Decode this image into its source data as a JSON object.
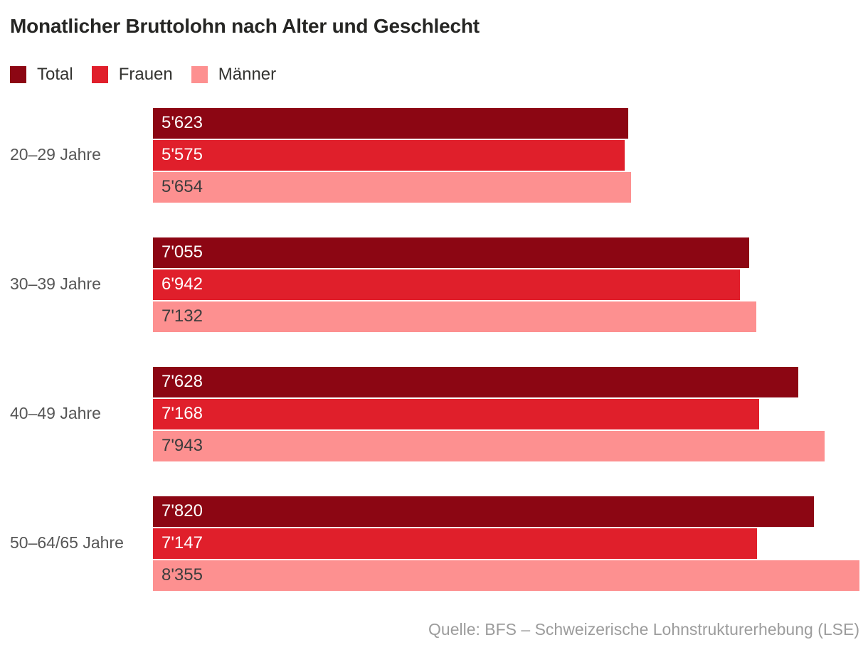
{
  "chart_data": {
    "type": "bar",
    "orientation": "horizontal",
    "title": "Monatlicher Bruttolohn nach Alter und Geschlecht",
    "source_note": "Quelle: BFS – Schweizerische Lohnstrukturerhebung (LSE)",
    "categories": [
      "20–29 Jahre",
      "30–39 Jahre",
      "40–49 Jahre",
      "50–64/65 Jahre"
    ],
    "series": [
      {
        "name": "Total",
        "color": "#8C0613",
        "label_color": "#FFFFFF",
        "values": [
          5623,
          7055,
          7628,
          7820
        ],
        "value_labels": [
          "5'623",
          "7'055",
          "7'628",
          "7'820"
        ]
      },
      {
        "name": "Frauen",
        "color": "#E01F2B",
        "label_color": "#FFFFFF",
        "values": [
          5575,
          6942,
          7168,
          7147
        ],
        "value_labels": [
          "5'575",
          "6'942",
          "7'168",
          "7'147"
        ]
      },
      {
        "name": "Männer",
        "color": "#FD9090",
        "label_color": "#3C3C3C",
        "values": [
          5654,
          7132,
          7943,
          8355
        ],
        "value_labels": [
          "5'654",
          "7'132",
          "7'943",
          "8'355"
        ]
      }
    ],
    "xlim": [
      0,
      8355
    ],
    "grid": false,
    "legend_position": "top",
    "axis_ticks_shown": false
  }
}
